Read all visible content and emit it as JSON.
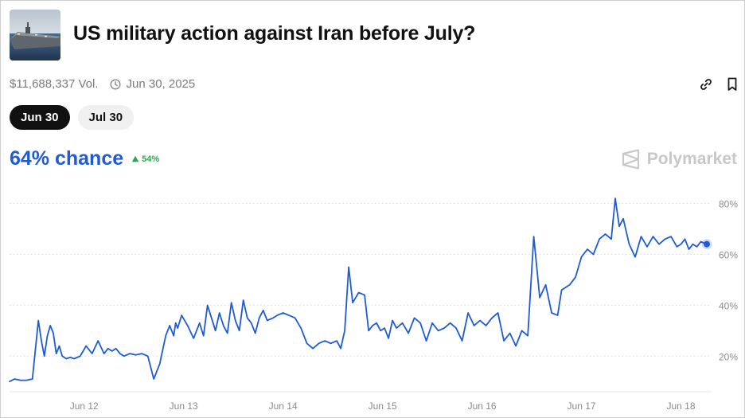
{
  "header": {
    "title": "US military action against Iran before July?",
    "thumbnail_icon": "aircraft-carrier-image"
  },
  "meta": {
    "volume": "$11,688,337 Vol.",
    "date": "Jun 30, 2025"
  },
  "actions": {
    "link_icon": "link-icon",
    "bookmark_icon": "bookmark-icon"
  },
  "tabs": [
    {
      "label": "Jun 30",
      "active": true
    },
    {
      "label": "Jul 30",
      "active": false
    }
  ],
  "summary": {
    "chance": "64% chance",
    "delta": "54%",
    "delta_color": "#2aa552",
    "accent": "#1f5bd6"
  },
  "brand": {
    "name": "Polymarket"
  },
  "chart_data": {
    "type": "line",
    "title": "",
    "xlabel": "",
    "ylabel": "",
    "ylim": [
      6,
      88
    ],
    "y_ticks": [
      20,
      40,
      60,
      80
    ],
    "y_tick_labels": [
      "20%",
      "40%",
      "60%",
      "80%"
    ],
    "x_ticks": [
      1,
      2,
      3,
      4,
      5,
      6,
      7
    ],
    "x_tick_labels": [
      "Jun 12",
      "Jun 13",
      "Jun 14",
      "Jun 15",
      "Jun 16",
      "Jun 17",
      "Jun 18"
    ],
    "xlim": [
      0.25,
      7.3
    ],
    "grid": true,
    "series": [
      {
        "color": "#1f5bd6",
        "x": [
          0.25,
          0.3,
          0.36,
          0.42,
          0.48,
          0.54,
          0.57,
          0.6,
          0.63,
          0.66,
          0.69,
          0.72,
          0.75,
          0.78,
          0.82,
          0.86,
          0.9,
          0.96,
          1.02,
          1.08,
          1.14,
          1.2,
          1.24,
          1.28,
          1.32,
          1.36,
          1.4,
          1.46,
          1.52,
          1.58,
          1.64,
          1.7,
          1.76,
          1.82,
          1.86,
          1.9,
          1.92,
          1.94,
          1.98,
          2.04,
          2.1,
          2.16,
          2.2,
          2.24,
          2.28,
          2.32,
          2.36,
          2.4,
          2.44,
          2.48,
          2.52,
          2.56,
          2.6,
          2.64,
          2.68,
          2.72,
          2.76,
          2.8,
          2.84,
          2.9,
          2.94,
          3.0,
          3.06,
          3.12,
          3.18,
          3.24,
          3.3,
          3.36,
          3.42,
          3.48,
          3.54,
          3.58,
          3.62,
          3.66,
          3.7,
          3.76,
          3.82,
          3.86,
          3.9,
          3.94,
          3.98,
          4.02,
          4.06,
          4.1,
          4.14,
          4.2,
          4.26,
          4.32,
          4.38,
          4.44,
          4.5,
          4.56,
          4.62,
          4.68,
          4.74,
          4.8,
          4.86,
          4.92,
          4.98,
          5.04,
          5.1,
          5.16,
          5.22,
          5.28,
          5.34,
          5.4,
          5.46,
          5.52,
          5.58,
          5.64,
          5.7,
          5.76,
          5.8,
          5.84,
          5.88,
          5.94,
          6.0,
          6.06,
          6.12,
          6.18,
          6.24,
          6.3,
          6.34,
          6.38,
          6.42,
          6.48,
          6.54,
          6.6,
          6.66,
          6.72,
          6.78,
          6.84,
          6.9,
          6.96,
          7.0,
          7.04,
          7.08,
          7.12,
          7.16,
          7.2,
          7.26
        ],
        "y": [
          10,
          11,
          10.5,
          10.5,
          11,
          34,
          26,
          20,
          28,
          32,
          29,
          21,
          24,
          20,
          19,
          19.5,
          19,
          20,
          24,
          21,
          26,
          21,
          23,
          22,
          23,
          21,
          20,
          21,
          20.5,
          21,
          20,
          11,
          17,
          28,
          32,
          28,
          33,
          31,
          36,
          32,
          27,
          33,
          28,
          40,
          35,
          30,
          37,
          32,
          29,
          41,
          34,
          30,
          42,
          35,
          33,
          29,
          35,
          38,
          34,
          35,
          36,
          37,
          36,
          35,
          31,
          25,
          23,
          25,
          26,
          25,
          26,
          23,
          30,
          55,
          41,
          45,
          44,
          30,
          32,
          33,
          30,
          31,
          27,
          34,
          31,
          33,
          29,
          35,
          33,
          26,
          33,
          30,
          31,
          33,
          31,
          26,
          37,
          32,
          34,
          32,
          35,
          37,
          26,
          29,
          24,
          30,
          28,
          67,
          43,
          48,
          37,
          36,
          46,
          47,
          48,
          51,
          59,
          62,
          60,
          66,
          68,
          66,
          82,
          71,
          74,
          64,
          59,
          67,
          63,
          67,
          64,
          66,
          67,
          63,
          64,
          66,
          62,
          64,
          63,
          65,
          64
        ]
      }
    ]
  }
}
